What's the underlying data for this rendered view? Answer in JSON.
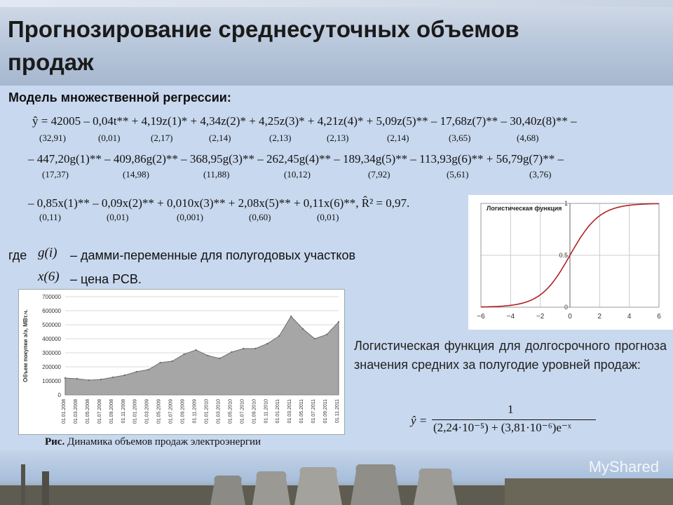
{
  "title": "Прогнозирование среднесуточных объемов продаж",
  "subtitle": "Модель множественной регрессии:",
  "equation": {
    "line1": "ŷ = 42005 – 0,04t** + 4,19z(1)* + 4,34z(2)* + 4,25z(3)* + 4,21z(4)* + 5,09z(5)** – 17,68z(7)** – 30,40z(8)** –",
    "line1_se": [
      "(32,91)",
      "(0,01)",
      "(2,17)",
      "(2,14)",
      "(2,13)",
      "(2,13)",
      "(2,14)",
      "(3,65)",
      "(4,68)"
    ],
    "line2": "– 447,20g(1)** – 409,86g(2)** – 368,95g(3)** – 262,45g(4)** – 189,34g(5)** – 113,93g(6)** + 56,79g(7)** –",
    "line2_se": [
      "(17,37)",
      "(14,98)",
      "(11,88)",
      "(10,12)",
      "(7,92)",
      "(5,61)",
      "(3,76)"
    ],
    "line3": "– 0,85x(1)** – 0,09x(2)** + 0,010x(3)** + 2,08x(5)** + 0,11x(6)**,  R̂² = 0,97.",
    "line3_se": [
      "(0,11)",
      "(0,01)",
      "(0,001)",
      "(0,60)",
      "(0,01)"
    ]
  },
  "legend": {
    "where_word": "где",
    "g_symbol": "g(i)",
    "g_desc": "– дамми-переменные для полугодовых участков",
    "x_symbol": "x(6)",
    "x_desc": "– цена РСВ."
  },
  "logistic_text": "Логистическая функция для долгосрочного прогноза значения средних за полугодие уровней продаж:",
  "formula": {
    "lhs": "ŷ =",
    "numerator": "1",
    "denominator": "(2,24·10⁻⁵) + (3,81·10⁻⁶)e⁻ˣ"
  },
  "caption": {
    "bold": "Рис.",
    "text": " Динамика объемов продаж электроэнергии"
  },
  "watermark": "MyShared",
  "chart_data": [
    {
      "type": "area",
      "title": "",
      "ylabel": "Объем покупки э/э, МВт.ч.",
      "ylim": [
        0,
        700000
      ],
      "yticks": [
        "0",
        "100000",
        "200000",
        "300000",
        "400000",
        "500000",
        "600000",
        "700000"
      ],
      "categories": [
        "01.01.2008",
        "01.03.2008",
        "01.05.2008",
        "01.07.2008",
        "01.09.2008",
        "01.11.2008",
        "01.01.2009",
        "01.03.2009",
        "01.05.2009",
        "01.07.2009",
        "01.09.2009",
        "01.11.2009",
        "01.01.2010",
        "01.03.2010",
        "01.05.2010",
        "01.07.2010",
        "01.09.2010",
        "01.11.2010",
        "01.01.2011",
        "01.03.2011",
        "01.05.2011",
        "01.07.2011",
        "01.09.2011",
        "01.11.2011"
      ],
      "values": [
        120000,
        115000,
        105000,
        110000,
        125000,
        140000,
        165000,
        180000,
        230000,
        240000,
        290000,
        320000,
        280000,
        260000,
        305000,
        330000,
        330000,
        365000,
        420000,
        560000,
        470000,
        400000,
        430000,
        520000
      ],
      "color": "#a6a6a6"
    },
    {
      "type": "line",
      "title": "Логистическая функция",
      "xlim": [
        -6,
        6
      ],
      "ylim": [
        0,
        1
      ],
      "xticks": [
        "−6",
        "−4",
        "−2",
        "0",
        "2",
        "4",
        "6"
      ],
      "yticks": [
        "0",
        "0.5",
        "1"
      ],
      "x": [
        -6,
        -5,
        -4,
        -3,
        -2,
        -1,
        0,
        1,
        2,
        3,
        4,
        5,
        6
      ],
      "y": [
        0.0025,
        0.0067,
        0.018,
        0.047,
        0.119,
        0.269,
        0.5,
        0.731,
        0.881,
        0.953,
        0.982,
        0.993,
        0.9975
      ],
      "color": "#b22222"
    }
  ]
}
